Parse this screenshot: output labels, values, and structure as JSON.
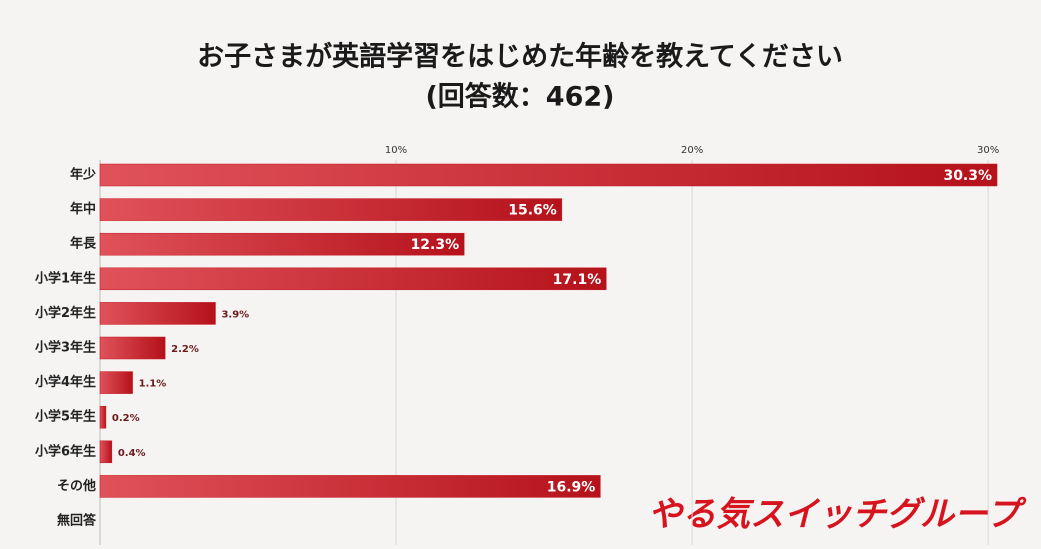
{
  "chart_data": {
    "type": "hbar",
    "title": "お子さまが英語学習をはじめた年齢を教えてください",
    "subtitle": "(回答数：462)",
    "categories": [
      "年少",
      "年中",
      "年長",
      "小学1年生",
      "小学2年生",
      "小学3年生",
      "小学4年生",
      "小学5年生",
      "小学6年生",
      "その他",
      "無回答"
    ],
    "values": [
      30.3,
      15.6,
      12.3,
      17.1,
      3.9,
      2.2,
      1.1,
      0.2,
      0.4,
      16.9,
      null
    ],
    "value_labels": [
      "30.3%",
      "15.6%",
      "12.3%",
      "17.1%",
      "3.9%",
      "2.2%",
      "1.1%",
      "0.2%",
      "0.4%",
      "16.9%",
      null
    ],
    "color": "#c8161d",
    "xlim": [
      0,
      30.4
    ],
    "xticks": [
      {
        "value": 10,
        "label": "10%"
      },
      {
        "value": 20,
        "label": "20%"
      },
      {
        "value": 30,
        "label": "30%"
      }
    ],
    "grid": true,
    "logo": "やる気スイッチグループ"
  }
}
